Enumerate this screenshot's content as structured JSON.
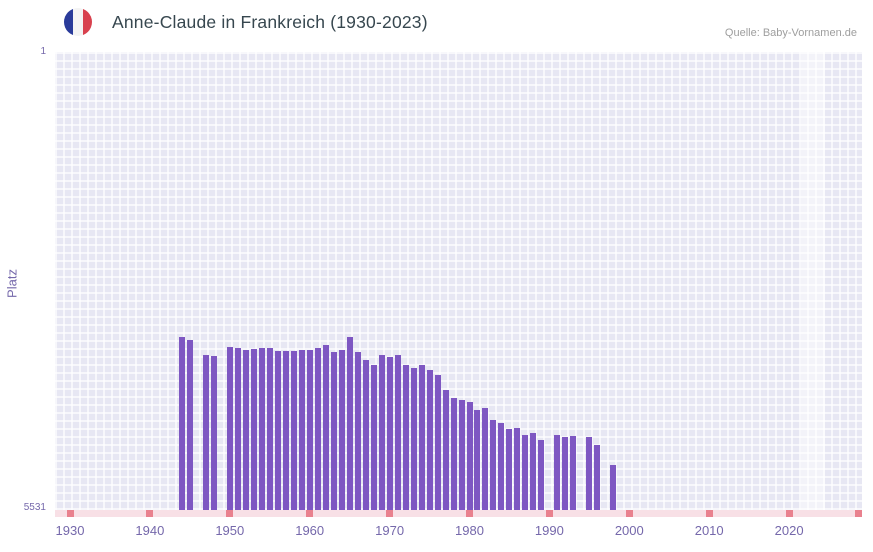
{
  "header": {
    "flag_icon": "france-flag",
    "title": "Anne-Claude in Frankreich (1930-2023)",
    "source": "Quelle: Baby-Vornamen.de"
  },
  "axes": {
    "y_label": "Platz",
    "y_tick_top": "1",
    "y_tick_bottom": "5531"
  },
  "colors": {
    "bar": "#7e57c2",
    "plot_background": "#e7e7f3",
    "grid_line": "#ffffff",
    "axis_strip": "#f8e0e6",
    "axis_tick_mark": "#e9818e",
    "axis_text": "#7568ab",
    "title_text": "#37474f",
    "source_text": "#9e9e9e",
    "flag_blue": "#2a3b9a",
    "flag_red": "#d8414e"
  },
  "chart_data": {
    "type": "bar",
    "title": "Anne-Claude in Frankreich (1930-2023)",
    "xlabel": "",
    "ylabel": "Platz",
    "y_axis_inverted": true,
    "ylim": [
      1,
      5531
    ],
    "x_range_shown": [
      1930,
      2023
    ],
    "x_ticks": [
      1930,
      1940,
      1950,
      1960,
      1970,
      1980,
      1990,
      2000,
      2010,
      2020
    ],
    "y_ticks": [
      1,
      5531
    ],
    "grid": true,
    "legend": "none",
    "highlight_band": {
      "from_year": 2021.5,
      "to_year": 2024.5
    },
    "points": [
      {
        "year": 1944,
        "rank": 3440
      },
      {
        "year": 1945,
        "rank": 3480
      },
      {
        "year": 1947,
        "rank": 3655
      },
      {
        "year": 1948,
        "rank": 3670
      },
      {
        "year": 1950,
        "rank": 3560
      },
      {
        "year": 1951,
        "rank": 3575
      },
      {
        "year": 1952,
        "rank": 3600
      },
      {
        "year": 1953,
        "rank": 3590
      },
      {
        "year": 1954,
        "rank": 3580
      },
      {
        "year": 1955,
        "rank": 3575
      },
      {
        "year": 1956,
        "rank": 3610
      },
      {
        "year": 1957,
        "rank": 3612
      },
      {
        "year": 1958,
        "rank": 3605
      },
      {
        "year": 1959,
        "rank": 3600
      },
      {
        "year": 1960,
        "rank": 3602
      },
      {
        "year": 1961,
        "rank": 3580
      },
      {
        "year": 1962,
        "rank": 3540
      },
      {
        "year": 1963,
        "rank": 3618
      },
      {
        "year": 1964,
        "rank": 3600
      },
      {
        "year": 1965,
        "rank": 3445
      },
      {
        "year": 1966,
        "rank": 3620
      },
      {
        "year": 1967,
        "rank": 3720
      },
      {
        "year": 1968,
        "rank": 3775
      },
      {
        "year": 1969,
        "rank": 3660
      },
      {
        "year": 1970,
        "rank": 3688
      },
      {
        "year": 1971,
        "rank": 3660
      },
      {
        "year": 1972,
        "rank": 3778
      },
      {
        "year": 1973,
        "rank": 3815
      },
      {
        "year": 1974,
        "rank": 3780
      },
      {
        "year": 1975,
        "rank": 3840
      },
      {
        "year": 1976,
        "rank": 3900
      },
      {
        "year": 1977,
        "rank": 4080
      },
      {
        "year": 1978,
        "rank": 4175
      },
      {
        "year": 1979,
        "rank": 4200
      },
      {
        "year": 1980,
        "rank": 4230
      },
      {
        "year": 1981,
        "rank": 4320
      },
      {
        "year": 1982,
        "rank": 4300
      },
      {
        "year": 1983,
        "rank": 4440
      },
      {
        "year": 1984,
        "rank": 4480
      },
      {
        "year": 1985,
        "rank": 4558
      },
      {
        "year": 1986,
        "rank": 4540
      },
      {
        "year": 1987,
        "rank": 4628
      },
      {
        "year": 1988,
        "rank": 4600
      },
      {
        "year": 1989,
        "rank": 4688
      },
      {
        "year": 1991,
        "rank": 4628
      },
      {
        "year": 1992,
        "rank": 4650
      },
      {
        "year": 1993,
        "rank": 4640
      },
      {
        "year": 1995,
        "rank": 4650
      },
      {
        "year": 1996,
        "rank": 4748
      },
      {
        "year": 1998,
        "rank": 4988
      }
    ]
  }
}
